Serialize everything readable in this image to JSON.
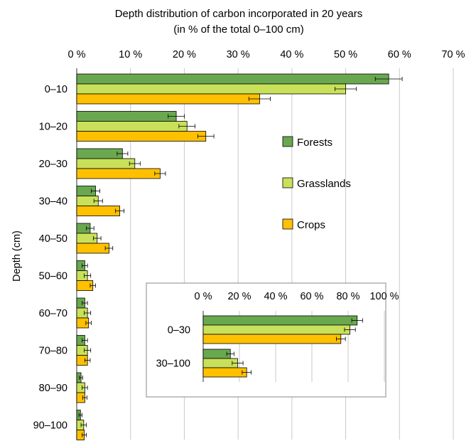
{
  "chart_data": [
    {
      "type": "bar",
      "orientation": "horizontal",
      "title": "Depth distribution of carbon incorporated in 20 years",
      "subtitle": "(in % of the total 0–100 cm)",
      "ylabel": "Depth (cm)",
      "xlabel": "",
      "xlim": [
        0,
        70
      ],
      "x_ticks": [
        "0 %",
        "10 %",
        "20 %",
        "30 %",
        "40 %",
        "50 %",
        "60 %",
        "70 %"
      ],
      "x_tick_values": [
        0,
        10,
        20,
        30,
        40,
        50,
        60,
        70
      ],
      "x_axis_position": "top",
      "grid": true,
      "legend_position": "right-middle",
      "categories": [
        "0–10",
        "10–20",
        "20–30",
        "30–40",
        "40–50",
        "50–60",
        "60–70",
        "70–80",
        "80–90",
        "90–100"
      ],
      "series": [
        {
          "name": "Forests",
          "color": "#6aa84f",
          "values": [
            58,
            18.5,
            8.5,
            3.5,
            2.5,
            1.5,
            1.5,
            1.5,
            0.8,
            0.7
          ],
          "errors": [
            2.5,
            1.5,
            1,
            0.8,
            0.7,
            0.5,
            0.5,
            0.5,
            0.3,
            0.3
          ]
        },
        {
          "name": "Grasslands",
          "color": "#c9e15a",
          "values": [
            50,
            20.5,
            10.8,
            4,
            3.8,
            2,
            2,
            2,
            1.5,
            1.3
          ],
          "errors": [
            2,
            1.5,
            1,
            0.8,
            0.7,
            0.6,
            0.6,
            0.6,
            0.5,
            0.5
          ]
        },
        {
          "name": "Crops",
          "color": "#ffc000",
          "values": [
            34,
            24,
            15.5,
            8,
            6,
            3,
            2.2,
            2,
            1.5,
            1.4
          ],
          "errors": [
            2,
            1.5,
            1,
            0.8,
            0.7,
            0.5,
            0.5,
            0.5,
            0.4,
            0.4
          ]
        }
      ]
    },
    {
      "type": "bar",
      "orientation": "horizontal",
      "inset": true,
      "xlim": [
        0,
        100
      ],
      "x_ticks": [
        "0 %",
        "20 %",
        "40 %",
        "60 %",
        "80 %",
        "100 %"
      ],
      "x_tick_values": [
        0,
        20,
        40,
        60,
        80,
        100
      ],
      "x_axis_position": "top",
      "categories": [
        "0–30",
        "30–100"
      ],
      "series": [
        {
          "name": "Forests",
          "color": "#6aa84f",
          "values": [
            85,
            15
          ],
          "errors": [
            3,
            2
          ]
        },
        {
          "name": "Grasslands",
          "color": "#c9e15a",
          "values": [
            81,
            19
          ],
          "errors": [
            3,
            3
          ]
        },
        {
          "name": "Crops",
          "color": "#ffc000",
          "values": [
            76,
            24
          ],
          "errors": [
            2.5,
            2.5
          ]
        }
      ]
    }
  ]
}
